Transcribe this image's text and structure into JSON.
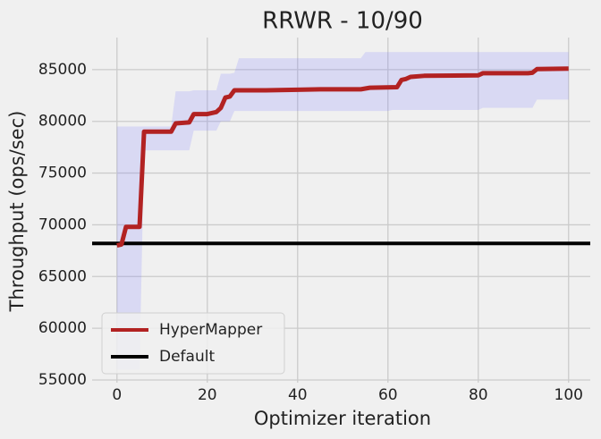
{
  "chart_data": {
    "type": "line",
    "title": "RRWR - 10/90",
    "x_label": "Optimizer iteration",
    "y_label": "Throughput (ops/sec)",
    "xlim": [
      -5.5,
      104.8
    ],
    "ylim": [
      54740,
      88100
    ],
    "xticks": [
      0,
      20,
      40,
      60,
      80,
      100
    ],
    "yticks": [
      55000,
      60000,
      65000,
      70000,
      75000,
      80000,
      85000
    ],
    "grid": true,
    "legend": "lower left",
    "band": {
      "color": "#7b7bff",
      "x": [
        0,
        5,
        6,
        12,
        13,
        16,
        17,
        22,
        23,
        25,
        26,
        27,
        54,
        55,
        60,
        61,
        80,
        81,
        92,
        93,
        100
      ],
      "lower": [
        56000,
        56000,
        77200,
        77200,
        77200,
        77200,
        79100,
        79100,
        80000,
        80000,
        81000,
        81000,
        81000,
        81000,
        81000,
        81100,
        81100,
        81300,
        81300,
        82100,
        82100
      ],
      "upper": [
        79500,
        79500,
        79500,
        79500,
        82900,
        82900,
        83000,
        83000,
        84600,
        84600,
        84700,
        86100,
        86100,
        86700,
        86700,
        86700,
        86700,
        86700,
        86700,
        86700,
        86700
      ]
    },
    "series": [
      {
        "name": "HyperMapper",
        "color": "#b22222",
        "x": [
          0,
          1,
          2,
          5,
          6,
          12,
          13,
          16,
          17,
          20,
          22,
          23,
          24,
          25,
          26,
          33,
          40,
          45,
          54,
          56,
          62,
          63,
          64,
          65,
          68,
          80,
          81,
          91,
          92,
          93,
          100
        ],
        "values": [
          68000,
          68100,
          69800,
          69800,
          79000,
          79000,
          79800,
          79900,
          80700,
          80700,
          80900,
          81300,
          82300,
          82400,
          83000,
          83000,
          83050,
          83100,
          83100,
          83250,
          83300,
          84000,
          84100,
          84300,
          84400,
          84450,
          84650,
          84650,
          84700,
          85050,
          85100
        ]
      }
    ],
    "hline": {
      "name": "Default",
      "color": "#000000",
      "value": 68200
    }
  }
}
